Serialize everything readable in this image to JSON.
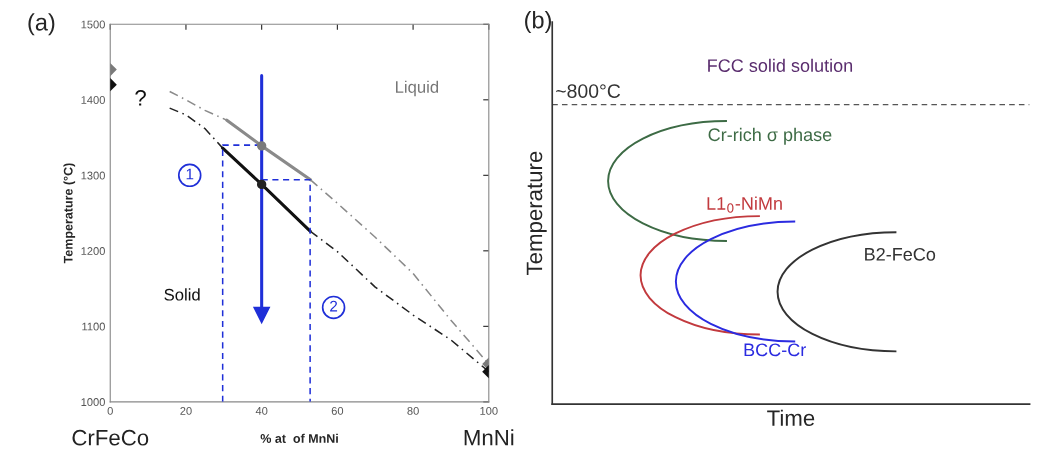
{
  "chart_data": [
    {
      "type": "line",
      "title": "(a)",
      "xlabel": "% at  of MnNi",
      "ylabel": "Temperature (°C)",
      "xlim": [
        0,
        100
      ],
      "xticks": [
        0,
        20,
        40,
        60,
        80,
        100
      ],
      "ylim": [
        1000,
        1500
      ],
      "yticks": [
        1000,
        1100,
        1200,
        1300,
        1400,
        1500
      ],
      "grid": false,
      "legend": false,
      "annotations": [
        "CrFeCo",
        "MnNi",
        "?",
        "Liquid",
        "Solid",
        "1",
        "2"
      ],
      "series": [
        {
          "type": "line",
          "color": "#8a8a8a",
          "line_style": "dashed",
          "x": [
            15.7,
            20,
            25,
            30.8
          ],
          "values": [
            1411,
            1400,
            1386,
            1373
          ]
        },
        {
          "type": "line",
          "color": "#8a8a8a",
          "line_style": "solid",
          "x": [
            30.8,
            40,
            52.9
          ],
          "values": [
            1373,
            1339,
            1294
          ]
        },
        {
          "type": "line",
          "color": "#8a8a8a",
          "line_style": "dashed",
          "x": [
            52.9,
            60,
            70,
            80,
            90,
            100
          ],
          "values": [
            1294,
            1263,
            1218,
            1170,
            1108,
            1050
          ]
        },
        {
          "type": "line",
          "color": "#222222",
          "line_style": "dashed",
          "x": [
            15.7,
            20,
            25,
            29.7
          ],
          "values": [
            1389,
            1380,
            1362,
            1336
          ]
        },
        {
          "type": "line",
          "color": "#111111",
          "line_style": "solid",
          "x": [
            29.7,
            40,
            52.8
          ],
          "values": [
            1336,
            1288,
            1226
          ]
        },
        {
          "type": "line",
          "color": "#222222",
          "line_style": "dashed",
          "x": [
            52.8,
            60,
            70,
            80,
            90,
            100
          ],
          "values": [
            1226,
            1199,
            1152,
            1115,
            1082,
            1040
          ]
        },
        {
          "type": "scatter",
          "color": "#7a7a7a",
          "marker": "diamond",
          "x": [
            0,
            100
          ],
          "values": [
            1440,
            1050
          ]
        },
        {
          "type": "scatter",
          "color": "#111111",
          "marker": "diamond",
          "x": [
            0,
            100
          ],
          "values": [
            1420,
            1040
          ]
        },
        {
          "type": "scatter",
          "color": "#7a7a7a",
          "marker": "circle",
          "x": [
            40
          ],
          "values": [
            1339
          ]
        },
        {
          "type": "scatter",
          "color": "#222222",
          "marker": "circle",
          "x": [
            40
          ],
          "values": [
            1288
          ]
        },
        {
          "type": "line",
          "color": "#1f2fd8",
          "line_style": "dashed",
          "x": [
            29.7,
            29.7,
            40
          ],
          "values": [
            1000,
            1340,
            1340
          ]
        },
        {
          "type": "line",
          "color": "#1f2fd8",
          "line_style": "dashed",
          "x": [
            40,
            52.8,
            52.8
          ],
          "values": [
            1294,
            1294,
            1000
          ]
        },
        {
          "type": "line",
          "color": "#1f2fd8",
          "line_style": "solid",
          "marker": "triangle",
          "x": [
            40,
            40
          ],
          "values": [
            1432,
            1115
          ]
        }
      ]
    },
    {
      "type": "other",
      "title": "(b)",
      "xlabel": "Time",
      "ylabel": "Temperature",
      "annotations": [
        "FCC solid solution",
        "~800°C",
        "Cr-rich σ phase",
        "L1$_{0}$-NiMn",
        "BCC-Cr",
        "B2-FeCo"
      ]
    }
  ]
}
